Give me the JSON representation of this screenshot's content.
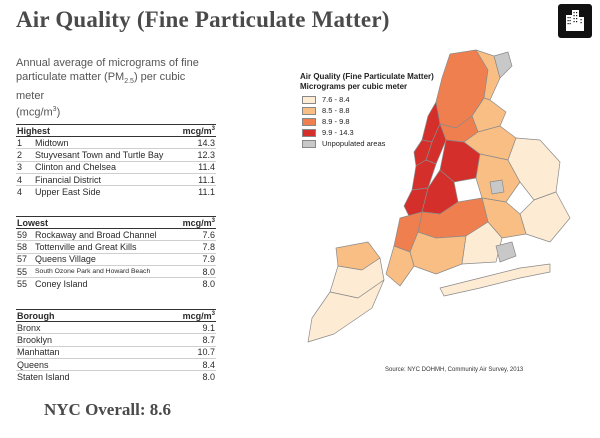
{
  "title": "Air Quality (Fine Particulate Matter)",
  "subtitle": {
    "line1": "Annual average of micrograms of fine",
    "line2a": "particulate matter (PM",
    "line2sub": "2.5",
    "line2b": ") per cubic meter",
    "line3a": "(mcg/m",
    "line3sup": "3",
    "line3b": ")"
  },
  "highest": {
    "header": "Highest",
    "unit": "mcg/m",
    "unit_sup": "3",
    "rows": [
      {
        "rank": "1",
        "name": "Midtown",
        "value": "14.3"
      },
      {
        "rank": "2",
        "name": "Stuyvesant Town and Turtle Bay",
        "value": "12.3"
      },
      {
        "rank": "3",
        "name": "Clinton and Chelsea",
        "value": "11.4"
      },
      {
        "rank": "4",
        "name": "Financial District",
        "value": "11.1"
      },
      {
        "rank": "4",
        "name": "Upper East Side",
        "value": "11.1"
      }
    ]
  },
  "lowest": {
    "header": "Lowest",
    "unit": "mcg/m",
    "unit_sup": "3",
    "rows": [
      {
        "rank": "59",
        "name": "Rockaway and Broad Channel",
        "value": "7.6"
      },
      {
        "rank": "58",
        "name": "Tottenville and Great Kills",
        "value": "7.8"
      },
      {
        "rank": "57",
        "name": "Queens Village",
        "value": "7.9"
      },
      {
        "rank": "55",
        "name": "South Ozone Park and Howard Beach",
        "value": "8.0"
      },
      {
        "rank": "55",
        "name": "Coney Island",
        "value": "8.0"
      }
    ]
  },
  "borough": {
    "header": "Borough",
    "unit": "mcg/m",
    "unit_sup": "3",
    "rows": [
      {
        "name": "Bronx",
        "value": "9.1"
      },
      {
        "name": "Brooklyn",
        "value": "8.7"
      },
      {
        "name": "Manhattan",
        "value": "10.7"
      },
      {
        "name": "Queens",
        "value": "8.4"
      },
      {
        "name": "Staten Island",
        "value": "8.0"
      }
    ]
  },
  "overall": "NYC Overall: 8.6",
  "legend": {
    "title": "Air Quality (Fine Particulate Matter)",
    "subtitle": "Micrograms per cubic meter",
    "items": [
      {
        "label": "7.6 - 8.4",
        "color": "#fdebd3"
      },
      {
        "label": "8.5 - 8.8",
        "color": "#f9be84"
      },
      {
        "label": "8.9 - 9.8",
        "color": "#f07f50"
      },
      {
        "label": "9.9 - 14.3",
        "color": "#d42f2a"
      },
      {
        "label": "Unpopulated areas",
        "color": "#c8c8c8"
      }
    ]
  },
  "source": "Source: NYC DOHMH, Community Air Survey, 2013",
  "logo_icon": "city-buildings-icon"
}
